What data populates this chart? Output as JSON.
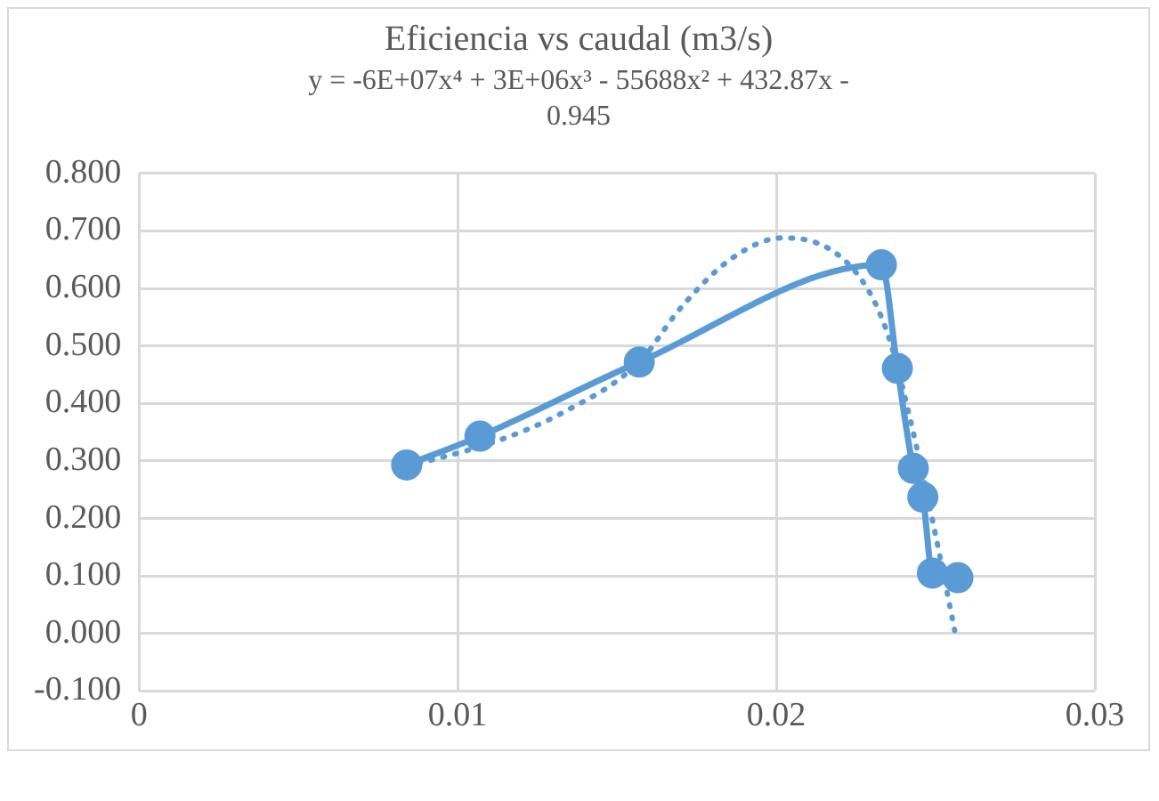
{
  "chart_data": {
    "type": "line",
    "title": "Eficiencia vs caudal (m3/s)",
    "subtitle": "y = -6E+07x⁴ + 3E+06x³ - 55688x² + 432.87x - 0.945",
    "series": [
      {
        "color": "#5b9bd5",
        "marker": "circle",
        "line_style": "solid",
        "x": [
          0.0084,
          0.0107,
          0.0157,
          0.0233,
          0.0238,
          0.0243,
          0.0246,
          0.0249,
          0.0257
        ],
        "values": [
          0.293,
          0.343,
          0.472,
          0.641,
          0.461,
          0.287,
          0.237,
          0.105,
          0.097
        ]
      },
      {
        "color": "#5b9bd5",
        "marker": "none",
        "line_style": "dotted",
        "x": [
          0.0084,
          0.0112,
          0.0133,
          0.0157,
          0.017,
          0.0186,
          0.0202,
          0.0219,
          0.023,
          0.0236,
          0.0242,
          0.025,
          0.0256
        ],
        "values": [
          0.29,
          0.334,
          0.384,
          0.472,
          0.566,
          0.652,
          0.688,
          0.66,
          0.586,
          0.503,
          0.373,
          0.171,
          0.005
        ]
      }
    ],
    "xlim": [
      0,
      0.03
    ],
    "xticks": [
      0,
      0.01,
      0.02,
      0.03
    ],
    "ylim": [
      -0.1,
      0.8
    ],
    "yticks": [
      {
        "value": -0.1,
        "label": "-0.100"
      },
      {
        "value": 0,
        "label": "0.000"
      },
      {
        "value": 0.1,
        "label": "0.100"
      },
      {
        "value": 0.2,
        "label": "0.200"
      },
      {
        "value": 0.3,
        "label": "0.300"
      },
      {
        "value": 0.4,
        "label": "0.400"
      },
      {
        "value": 0.5,
        "label": "0.500"
      },
      {
        "value": 0.6,
        "label": "0.600"
      },
      {
        "value": 0.7,
        "label": "0.700"
      },
      {
        "value": 0.8,
        "label": "0.800"
      }
    ],
    "grid": true,
    "legend": false
  }
}
